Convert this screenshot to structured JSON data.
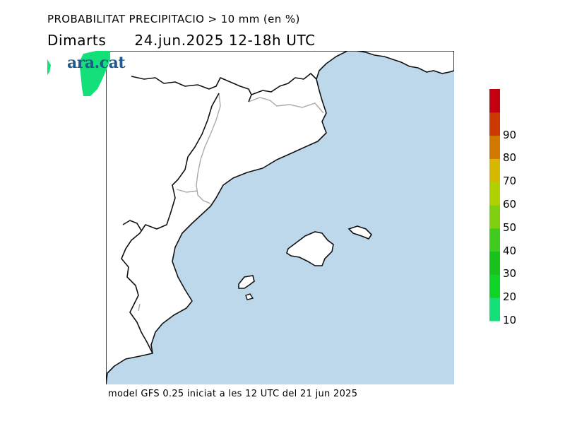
{
  "title": {
    "line1": "PROBABILITAT PRECIPITACIO > 10 mm (en %)",
    "day": "Dimarts",
    "datetime": "24.jun.2025 12-18h UTC"
  },
  "logo": {
    "text": "ara.cat"
  },
  "footer": {
    "text": "model GFS 0.25 iniciat a les 12 UTC del 21 jun 2025"
  },
  "map": {
    "sea_color": "#bcd8ea",
    "land_color": "#ffffff",
    "coast_color": "#111111",
    "border_color": "#aaaaaa",
    "precip_area_color": "#14e07a"
  },
  "colorbar": {
    "levels": [
      {
        "label": "10",
        "color": "#14e07a"
      },
      {
        "label": "20",
        "color": "#0fd428"
      },
      {
        "label": "30",
        "color": "#17c21b"
      },
      {
        "label": "40",
        "color": "#40cc1e"
      },
      {
        "label": "50",
        "color": "#80d010"
      },
      {
        "label": "60",
        "color": "#b0d000"
      },
      {
        "label": "70",
        "color": "#d6b800"
      },
      {
        "label": "80",
        "color": "#d07800"
      },
      {
        "label": "90",
        "color": "#cc3800"
      },
      {
        "label": "",
        "color": "#c20010"
      }
    ]
  }
}
